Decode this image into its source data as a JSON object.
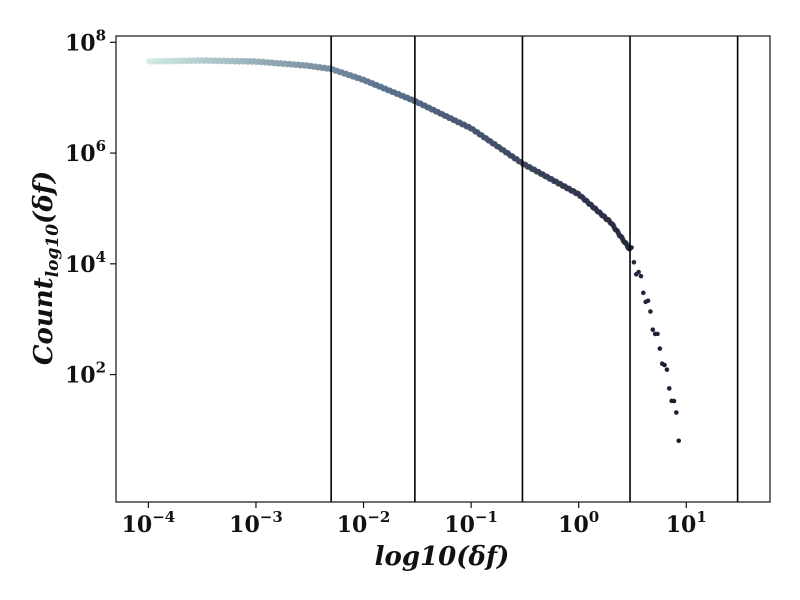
{
  "chart_data": {
    "type": "scatter",
    "title": "",
    "xlabel": "log10(δf)",
    "ylabel_main": "Count",
    "ylabel_sub": "log10",
    "ylabel_tail": "(δf)",
    "x_scale": "log",
    "y_scale": "log",
    "xlim": [
      5e-05,
      60
    ],
    "ylim": [
      0.5,
      130000000
    ],
    "x_ticks": [
      {
        "value": 0.0001,
        "base": "10",
        "exp": "−4"
      },
      {
        "value": 0.001,
        "base": "10",
        "exp": "−3"
      },
      {
        "value": 0.01,
        "base": "10",
        "exp": "−2"
      },
      {
        "value": 0.1,
        "base": "10",
        "exp": "−1"
      },
      {
        "value": 1,
        "base": "10",
        "exp": "0"
      },
      {
        "value": 10,
        "base": "10",
        "exp": "1"
      }
    ],
    "y_ticks": [
      {
        "value": 100,
        "base": "10",
        "exp": "2"
      },
      {
        "value": 10000,
        "base": "10",
        "exp": "4"
      },
      {
        "value": 1000000,
        "base": "10",
        "exp": "6"
      },
      {
        "value": 100000000,
        "base": "10",
        "exp": "8"
      }
    ],
    "vertical_lines": [
      0.005,
      0.03,
      0.3,
      3,
      30
    ],
    "grid": false,
    "legend": "none",
    "color_start": "#d3ece6",
    "color_mid": "#5a6f8a",
    "color_end": "#1b1a2e",
    "curve": [
      [
        0.0001,
        45000000
      ],
      [
        0.0003,
        47000000
      ],
      [
        0.001,
        45000000
      ],
      [
        0.003,
        38000000
      ],
      [
        0.005,
        33000000
      ],
      [
        0.01,
        21000000
      ],
      [
        0.03,
        8700000
      ],
      [
        0.1,
        2800000
      ],
      [
        0.3,
        650000
      ],
      [
        1,
        180000
      ],
      [
        2,
        55000
      ],
      [
        3,
        18000
      ],
      [
        4,
        3500
      ],
      [
        5,
        700
      ],
      [
        6,
        200
      ],
      [
        7,
        60
      ],
      [
        8,
        20
      ],
      [
        8.5,
        8
      ]
    ]
  }
}
